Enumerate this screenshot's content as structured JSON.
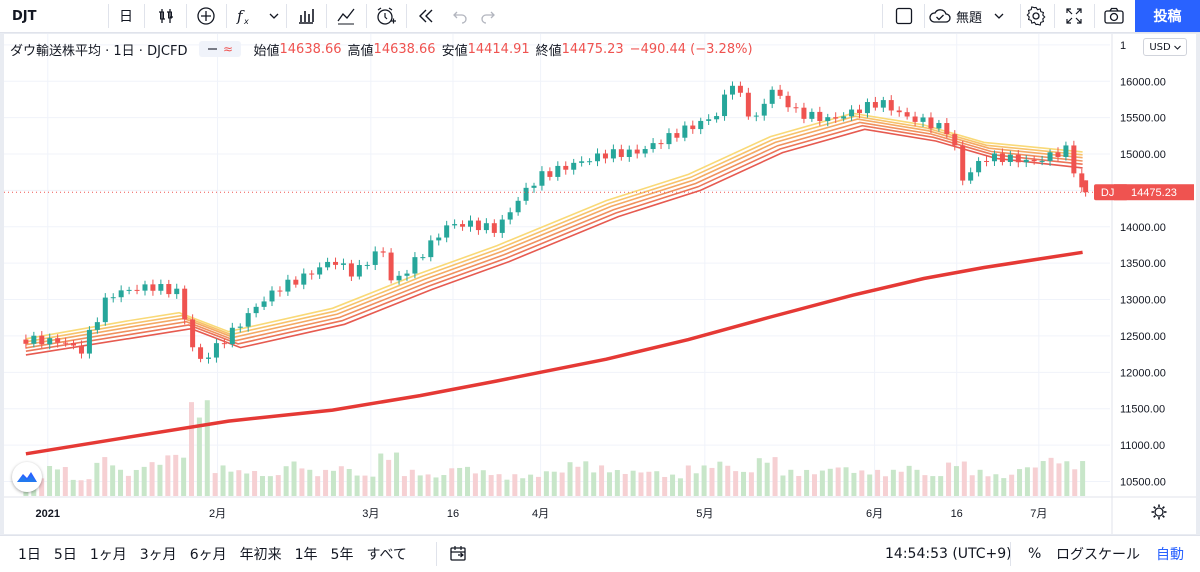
{
  "toolbar": {
    "symbol": "DJT",
    "interval": "日",
    "visibility": "無題",
    "publish": "投稿"
  },
  "legend": {
    "name": "ダウ輸送株平均 · 1日 · DJCFD",
    "o_label": "始値",
    "o_value": "14638.66",
    "h_label": "高値",
    "h_value": "14638.66",
    "l_label": "安値",
    "l_value": "14414.91",
    "c_label": "終値",
    "c_value": "14475.23",
    "change": "−490.44 (−3.28%)"
  },
  "currency": "USD",
  "price_tag": {
    "symbol": "DJT",
    "value": "14475.23"
  },
  "bottombar": {
    "ranges": [
      "1日",
      "5日",
      "1ヶ月",
      "3ヶ月",
      "6ヶ月",
      "年初来",
      "1年",
      "5年",
      "すべて"
    ],
    "time": "14:54:53 (UTC+9)",
    "percent": "%",
    "log": "ログスケール",
    "auto": "自動"
  },
  "colors": {
    "up": "#26a69a",
    "down": "#ef5350",
    "vol_up": "#c8e6c9",
    "vol_down": "#f6d0d3",
    "ma200": "#e53935",
    "ribbon": [
      "#f9d977",
      "#f7c26b",
      "#f4a964",
      "#f0905e",
      "#ec7558",
      "#e65a50"
    ],
    "accent": "#2962ff"
  },
  "icons": [
    "bar-style-icon",
    "indicators-plus-icon",
    "fx-icon",
    "templates-icon",
    "compare-icon",
    "alert-icon",
    "replay-icon",
    "undo-icon",
    "redo-icon",
    "layout-icon",
    "cloud-icon",
    "settings-icon",
    "fullscreen-icon",
    "camera-icon",
    "tradingview-logo-icon",
    "gear-icon",
    "goto-date-icon"
  ],
  "chart_data": {
    "type": "line",
    "symbol": "DJT",
    "interval": "1D",
    "x_tick_labels": [
      "2021",
      "2月",
      "3月",
      "16",
      "4月",
      "5月",
      "6月",
      "16",
      "7月"
    ],
    "y_tick_labels": [
      "1",
      "16000.00",
      "15500.00",
      "15000.00",
      "14500.00",
      "14000.00",
      "13500.00",
      "13000.00",
      "12500.00",
      "12000.00",
      "11500.00",
      "11000.00",
      "10500.00"
    ],
    "ylim": [
      10300,
      16650
    ],
    "grid": true,
    "last_close": 14475.23,
    "close_series": {
      "name": "DJT",
      "x": [
        "2020-12-28",
        "2021-01-04",
        "2021-01-07",
        "2021-01-12",
        "2021-01-15",
        "2021-01-20",
        "2021-01-25",
        "2021-01-27",
        "2021-01-29",
        "2021-02-03",
        "2021-02-08",
        "2021-02-12",
        "2021-02-17",
        "2021-02-22",
        "2021-02-26",
        "2021-03-03",
        "2021-03-05",
        "2021-03-10",
        "2021-03-15",
        "2021-03-19",
        "2021-03-24",
        "2021-03-29",
        "2021-04-01",
        "2021-04-07",
        "2021-04-13",
        "2021-04-19",
        "2021-04-23",
        "2021-04-28",
        "2021-05-03",
        "2021-05-06",
        "2021-05-10",
        "2021-05-13",
        "2021-05-18",
        "2021-05-24",
        "2021-05-28",
        "2021-06-02",
        "2021-06-07",
        "2021-06-10",
        "2021-06-15",
        "2021-06-17",
        "2021-06-21",
        "2021-06-25",
        "2021-06-30",
        "2021-07-06",
        "2021-07-09"
      ],
      "y": [
        12450,
        12420,
        12280,
        13050,
        13120,
        13180,
        13100,
        12400,
        12150,
        12500,
        12900,
        13150,
        13320,
        13540,
        13350,
        13720,
        13200,
        13600,
        14020,
        14040,
        13960,
        14480,
        14700,
        14860,
        15000,
        15030,
        15180,
        15360,
        15520,
        16000,
        15420,
        15900,
        15560,
        15470,
        15580,
        15720,
        15500,
        15450,
        15300,
        14640,
        14950,
        14950,
        14890,
        15060,
        14475.23
      ]
    },
    "ma_ribbon_series": [
      {
        "x": [
          "2020-12-28",
          "2021-01-15",
          "2021-01-25",
          "2021-02-03",
          "2021-02-22",
          "2021-03-10",
          "2021-03-24",
          "2021-04-13",
          "2021-04-28",
          "2021-05-13",
          "2021-05-28",
          "2021-06-10",
          "2021-06-21",
          "2021-07-09"
        ],
        "y": [
          12460,
          12700,
          12820,
          12560,
          12880,
          13360,
          13740,
          14360,
          14720,
          15240,
          15560,
          15400,
          15160,
          15030
        ]
      },
      {
        "x": [
          "2020-12-28",
          "2021-07-09"
        ],
        "y": [
          12200,
          14980
        ]
      }
    ],
    "ma200_series": {
      "x": [
        "2020-12-28",
        "2021-01-15",
        "2021-02-03",
        "2021-02-22",
        "2021-03-10",
        "2021-03-24",
        "2021-04-13",
        "2021-04-28",
        "2021-05-13",
        "2021-05-28",
        "2021-06-10",
        "2021-06-21",
        "2021-07-09"
      ],
      "y": [
        10880,
        11100,
        11330,
        11480,
        11680,
        11880,
        12180,
        12450,
        12760,
        13060,
        13290,
        13440,
        13650
      ]
    },
    "volume": {
      "x_range": [
        "2020-12-28",
        "2021-07-09"
      ],
      "relative_values": [
        0.5,
        0.7,
        0.4,
        0.9,
        0.6,
        0.8,
        1.0,
        2.2,
        0.7,
        0.6,
        0.5,
        0.8,
        0.6,
        0.7,
        0.5,
        1.0,
        0.6,
        0.5,
        0.7,
        0.6,
        0.5,
        0.5,
        0.6,
        0.8,
        0.7,
        0.6,
        0.6,
        0.5,
        0.7,
        0.8,
        0.6,
        0.9,
        0.6,
        0.6,
        0.7,
        0.6,
        0.6,
        0.7,
        0.5,
        0.8,
        0.6,
        0.5,
        0.7,
        0.9,
        0.8
      ]
    }
  }
}
